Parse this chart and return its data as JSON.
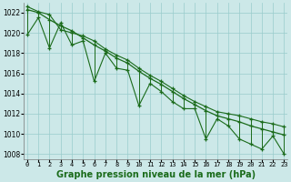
{
  "hours": [
    0,
    1,
    2,
    3,
    4,
    5,
    6,
    7,
    8,
    9,
    10,
    11,
    12,
    13,
    14,
    15,
    16,
    17,
    18,
    19,
    20,
    21,
    22,
    23
  ],
  "line_upper": [
    1022.6,
    1022.1,
    1021.8,
    1020.3,
    1020.0,
    1019.7,
    1019.2,
    1018.4,
    1017.8,
    1017.3,
    1016.5,
    1015.8,
    1015.2,
    1014.5,
    1013.8,
    1013.2,
    1012.7,
    1012.2,
    1012.0,
    1011.8,
    1011.5,
    1011.2,
    1011.0,
    1010.7
  ],
  "line_lower": [
    1019.8,
    1021.5,
    1018.5,
    1021.0,
    1018.8,
    1019.2,
    1015.2,
    1018.0,
    1016.5,
    1016.3,
    1012.8,
    1015.0,
    1014.2,
    1013.2,
    1012.5,
    1012.5,
    1009.5,
    1011.5,
    1010.8,
    1009.5,
    1009.0,
    1008.5,
    1009.8,
    1008.0
  ],
  "line_trend": [
    1022.3,
    1022.0,
    1021.3,
    1020.7,
    1020.2,
    1019.5,
    1018.8,
    1018.2,
    1017.5,
    1017.0,
    1016.2,
    1015.5,
    1014.9,
    1014.2,
    1013.5,
    1012.9,
    1012.3,
    1011.8,
    1011.5,
    1011.2,
    1010.8,
    1010.5,
    1010.2,
    1009.9
  ],
  "bg_color": "#cce8e8",
  "grid_color": "#99cccc",
  "line_color": "#1a6b1a",
  "title": "Graphe pression niveau de la mer (hPa)",
  "ylim_min": 1007.5,
  "ylim_max": 1023.0,
  "yticks": [
    1008,
    1010,
    1012,
    1014,
    1016,
    1018,
    1020,
    1022
  ]
}
